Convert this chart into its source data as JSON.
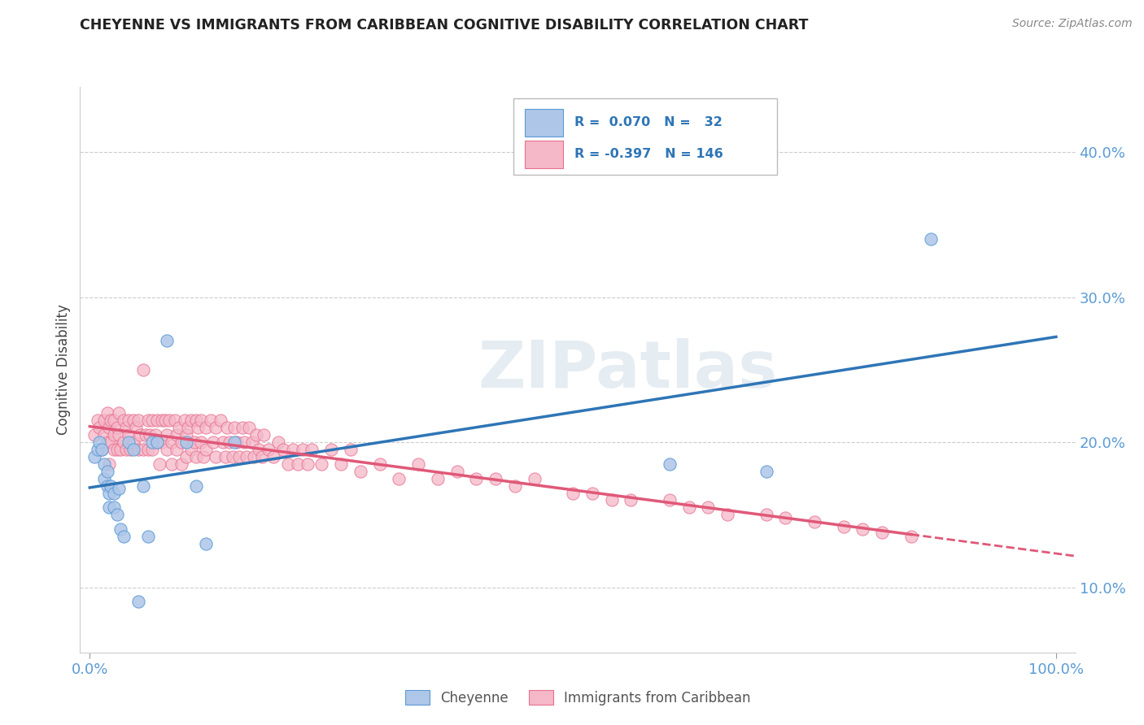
{
  "title": "CHEYENNE VS IMMIGRANTS FROM CARIBBEAN COGNITIVE DISABILITY CORRELATION CHART",
  "source": "Source: ZipAtlas.com",
  "ylabel": "Cognitive Disability",
  "yticks": [
    "10.0%",
    "20.0%",
    "30.0%",
    "40.0%"
  ],
  "ytick_vals": [
    0.1,
    0.2,
    0.3,
    0.4
  ],
  "xlim": [
    -0.01,
    1.02
  ],
  "ylim": [
    0.055,
    0.445
  ],
  "color_cheyenne_fill": "#aec6e8",
  "color_cheyenne_edge": "#5b9bd5",
  "color_caribbean_fill": "#f4b8c8",
  "color_caribbean_edge": "#e87090",
  "color_line_cheyenne": "#2e75b6",
  "color_line_caribbean": "#e05878",
  "color_title": "#222222",
  "color_tick_labels": "#5b9bd5",
  "cheyenne_x": [
    0.005,
    0.008,
    0.01,
    0.012,
    0.015,
    0.015,
    0.018,
    0.018,
    0.02,
    0.02,
    0.022,
    0.025,
    0.025,
    0.028,
    0.03,
    0.032,
    0.035,
    0.04,
    0.045,
    0.05,
    0.055,
    0.06,
    0.065,
    0.07,
    0.08,
    0.1,
    0.11,
    0.12,
    0.15,
    0.6,
    0.7,
    0.87
  ],
  "cheyenne_y": [
    0.19,
    0.195,
    0.2,
    0.195,
    0.185,
    0.175,
    0.17,
    0.18,
    0.165,
    0.155,
    0.17,
    0.165,
    0.155,
    0.15,
    0.168,
    0.14,
    0.135,
    0.2,
    0.195,
    0.09,
    0.17,
    0.135,
    0.2,
    0.2,
    0.27,
    0.2,
    0.17,
    0.13,
    0.2,
    0.185,
    0.18,
    0.34
  ],
  "caribbean_x": [
    0.005,
    0.008,
    0.01,
    0.012,
    0.015,
    0.015,
    0.018,
    0.018,
    0.02,
    0.02,
    0.022,
    0.022,
    0.025,
    0.025,
    0.025,
    0.028,
    0.028,
    0.03,
    0.03,
    0.032,
    0.035,
    0.035,
    0.038,
    0.038,
    0.04,
    0.04,
    0.042,
    0.045,
    0.045,
    0.048,
    0.05,
    0.05,
    0.052,
    0.055,
    0.055,
    0.058,
    0.06,
    0.06,
    0.062,
    0.065,
    0.065,
    0.068,
    0.07,
    0.07,
    0.072,
    0.075,
    0.075,
    0.078,
    0.08,
    0.08,
    0.082,
    0.085,
    0.085,
    0.088,
    0.09,
    0.09,
    0.092,
    0.095,
    0.095,
    0.098,
    0.1,
    0.1,
    0.102,
    0.105,
    0.105,
    0.108,
    0.11,
    0.11,
    0.112,
    0.115,
    0.115,
    0.118,
    0.12,
    0.12,
    0.125,
    0.128,
    0.13,
    0.13,
    0.135,
    0.138,
    0.14,
    0.142,
    0.145,
    0.148,
    0.15,
    0.152,
    0.155,
    0.158,
    0.16,
    0.162,
    0.165,
    0.168,
    0.17,
    0.172,
    0.175,
    0.178,
    0.18,
    0.185,
    0.19,
    0.195,
    0.2,
    0.205,
    0.21,
    0.215,
    0.22,
    0.225,
    0.23,
    0.24,
    0.25,
    0.26,
    0.27,
    0.28,
    0.3,
    0.32,
    0.34,
    0.36,
    0.38,
    0.4,
    0.42,
    0.44,
    0.46,
    0.5,
    0.52,
    0.54,
    0.56,
    0.6,
    0.62,
    0.64,
    0.66,
    0.7,
    0.72,
    0.75,
    0.78,
    0.8,
    0.82,
    0.85
  ],
  "caribbean_y": [
    0.205,
    0.215,
    0.21,
    0.195,
    0.205,
    0.215,
    0.2,
    0.22,
    0.21,
    0.185,
    0.215,
    0.2,
    0.215,
    0.195,
    0.205,
    0.21,
    0.195,
    0.22,
    0.205,
    0.195,
    0.215,
    0.2,
    0.21,
    0.195,
    0.215,
    0.205,
    0.195,
    0.215,
    0.2,
    0.21,
    0.215,
    0.195,
    0.205,
    0.25,
    0.195,
    0.205,
    0.215,
    0.195,
    0.205,
    0.215,
    0.195,
    0.205,
    0.215,
    0.2,
    0.185,
    0.215,
    0.2,
    0.215,
    0.205,
    0.195,
    0.215,
    0.2,
    0.185,
    0.215,
    0.205,
    0.195,
    0.21,
    0.2,
    0.185,
    0.215,
    0.205,
    0.19,
    0.21,
    0.195,
    0.215,
    0.2,
    0.215,
    0.19,
    0.21,
    0.215,
    0.2,
    0.19,
    0.21,
    0.195,
    0.215,
    0.2,
    0.19,
    0.21,
    0.215,
    0.2,
    0.19,
    0.21,
    0.2,
    0.19,
    0.21,
    0.2,
    0.19,
    0.21,
    0.2,
    0.19,
    0.21,
    0.2,
    0.19,
    0.205,
    0.195,
    0.19,
    0.205,
    0.195,
    0.19,
    0.2,
    0.195,
    0.185,
    0.195,
    0.185,
    0.195,
    0.185,
    0.195,
    0.185,
    0.195,
    0.185,
    0.195,
    0.18,
    0.185,
    0.175,
    0.185,
    0.175,
    0.18,
    0.175,
    0.175,
    0.17,
    0.175,
    0.165,
    0.165,
    0.16,
    0.16,
    0.16,
    0.155,
    0.155,
    0.15,
    0.15,
    0.148,
    0.145,
    0.142,
    0.14,
    0.138,
    0.135
  ]
}
